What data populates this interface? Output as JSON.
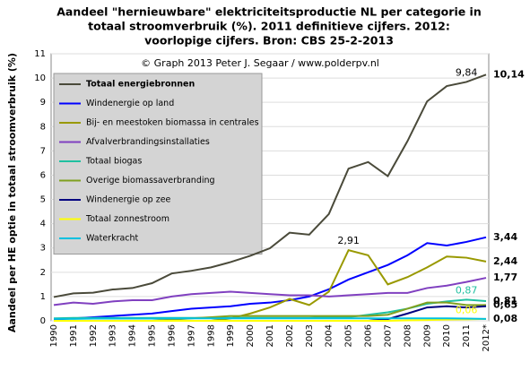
{
  "chart_data": {
    "type": "line",
    "title": [
      "Aandeel \"hernieuwbare\" elektriciteitsproductie NL per categorie in",
      "totaal stroomverbruik (%). 2011 definitieve cijfers. 2012:",
      "voorlopige cijfers. Bron: CBS 25-2-2013"
    ],
    "subtitle": "© Graph 2013 Peter J. Segaar / www.polderpv.nl",
    "y_label": "Aandeel per HE optie in totaal stroomverbruik (%)",
    "categories": [
      "1990",
      "1991",
      "1992",
      "1993",
      "1994",
      "1995",
      "1996",
      "1997",
      "1998",
      "1999",
      "2000",
      "2001",
      "2002",
      "2003",
      "2004",
      "2005",
      "2006",
      "2007",
      "2008",
      "2009",
      "2010",
      "2011",
      "2012*"
    ],
    "ylim": [
      0,
      11
    ],
    "yticks": [
      0,
      1,
      2,
      3,
      4,
      5,
      6,
      7,
      8,
      9,
      10,
      11
    ],
    "grid": true,
    "legend": "upper-left",
    "series": [
      {
        "name": "Totaal energiebronnen",
        "color": "#4a4a3a",
        "values": [
          0.98,
          1.13,
          1.16,
          1.29,
          1.35,
          1.55,
          1.95,
          2.06,
          2.2,
          2.42,
          2.68,
          2.99,
          3.63,
          3.55,
          4.4,
          6.27,
          6.54,
          5.96,
          7.4,
          9.04,
          9.67,
          9.84,
          10.14
        ],
        "value_labels": [
          null,
          null,
          null,
          null,
          null,
          null,
          null,
          null,
          null,
          null,
          null,
          null,
          null,
          null,
          null,
          null,
          null,
          null,
          null,
          null,
          null,
          "9,84",
          "10,14"
        ]
      },
      {
        "name": "Windenergie op land",
        "color": "#0000ff",
        "values": [
          0.05,
          0.1,
          0.15,
          0.2,
          0.25,
          0.3,
          0.4,
          0.5,
          0.55,
          0.6,
          0.7,
          0.75,
          0.85,
          1.0,
          1.3,
          1.7,
          2.0,
          2.3,
          2.7,
          3.2,
          3.1,
          3.25,
          3.44
        ],
        "value_labels": [
          null,
          null,
          null,
          null,
          null,
          null,
          null,
          null,
          null,
          null,
          null,
          null,
          null,
          null,
          null,
          null,
          null,
          null,
          null,
          null,
          null,
          null,
          "3,44"
        ]
      },
      {
        "name": "Bij- en meestoken biomassa in centrales",
        "color": "#999900",
        "values": [
          0,
          0,
          0,
          0,
          0,
          0,
          0,
          0,
          0,
          0.1,
          0.3,
          0.55,
          0.9,
          0.65,
          1.2,
          2.91,
          2.7,
          1.5,
          1.8,
          2.2,
          2.65,
          2.6,
          2.44
        ],
        "value_labels": [
          null,
          null,
          null,
          null,
          null,
          null,
          null,
          null,
          null,
          null,
          null,
          null,
          null,
          null,
          null,
          "2,91",
          null,
          null,
          null,
          null,
          null,
          null,
          "2,44"
        ]
      },
      {
        "name": "Afvalverbrandingsinstallaties",
        "color": "#8040c0",
        "values": [
          0.65,
          0.75,
          0.7,
          0.8,
          0.85,
          0.85,
          1.0,
          1.1,
          1.15,
          1.2,
          1.15,
          1.1,
          1.05,
          1.05,
          1.0,
          1.05,
          1.1,
          1.15,
          1.15,
          1.35,
          1.45,
          1.6,
          1.77
        ],
        "value_labels": [
          null,
          null,
          null,
          null,
          null,
          null,
          null,
          null,
          null,
          null,
          null,
          null,
          null,
          null,
          null,
          null,
          null,
          null,
          null,
          null,
          null,
          null,
          "1,77"
        ]
      },
      {
        "name": "Totaal biogas",
        "color": "#20c0a0",
        "values": [
          0.1,
          0.12,
          0.12,
          0.12,
          0.12,
          0.12,
          0.12,
          0.12,
          0.12,
          0.12,
          0.12,
          0.12,
          0.12,
          0.12,
          0.15,
          0.15,
          0.25,
          0.35,
          0.5,
          0.7,
          0.8,
          0.87,
          0.81
        ],
        "value_labels": [
          null,
          null,
          null,
          null,
          null,
          null,
          null,
          null,
          null,
          null,
          null,
          null,
          null,
          null,
          null,
          null,
          null,
          null,
          null,
          null,
          null,
          "0,87",
          "0,81"
        ]
      },
      {
        "name": "Overige biomassaverbranding",
        "color": "#80a020",
        "values": [
          0,
          0,
          0,
          0,
          0,
          0,
          0.05,
          0.1,
          0.15,
          0.2,
          0.2,
          0.2,
          0.2,
          0.2,
          0.2,
          0.2,
          0.2,
          0.25,
          0.5,
          0.75,
          0.75,
          0.65,
          0.65
        ],
        "value_labels": [
          null,
          null,
          null,
          null,
          null,
          null,
          null,
          null,
          null,
          null,
          null,
          null,
          null,
          null,
          null,
          null,
          null,
          null,
          null,
          null,
          null,
          null,
          "0,65"
        ]
      },
      {
        "name": "Windenergie op zee",
        "color": "#000080",
        "values": [
          0,
          0,
          0,
          0,
          0,
          0,
          0,
          0,
          0,
          0,
          0,
          0,
          0,
          0,
          0,
          0,
          0,
          0.07,
          0.3,
          0.55,
          0.6,
          0.55,
          0.6
        ]
      },
      {
        "name": "Totaal zonnestroom",
        "color": "#ffff00",
        "values": [
          0,
          0,
          0,
          0,
          0,
          0,
          0,
          0,
          0,
          0,
          0,
          0,
          0,
          0,
          0,
          0,
          0,
          0,
          0.02,
          0.03,
          0.05,
          0.06,
          0.08
        ],
        "value_labels": [
          null,
          null,
          null,
          null,
          null,
          null,
          null,
          null,
          null,
          null,
          null,
          null,
          null,
          null,
          null,
          null,
          null,
          null,
          null,
          null,
          null,
          "0,06",
          null
        ]
      },
      {
        "name": "Waterkracht",
        "color": "#00c0e0",
        "values": [
          0.08,
          0.08,
          0.09,
          0.09,
          0.09,
          0.09,
          0.1,
          0.1,
          0.1,
          0.1,
          0.1,
          0.1,
          0.1,
          0.1,
          0.1,
          0.1,
          0.1,
          0.1,
          0.1,
          0.1,
          0.1,
          0.09,
          0.08
        ],
        "value_labels": [
          null,
          null,
          null,
          null,
          null,
          null,
          null,
          null,
          null,
          null,
          null,
          null,
          null,
          null,
          null,
          null,
          null,
          null,
          null,
          null,
          null,
          null,
          "0,08"
        ]
      }
    ]
  }
}
